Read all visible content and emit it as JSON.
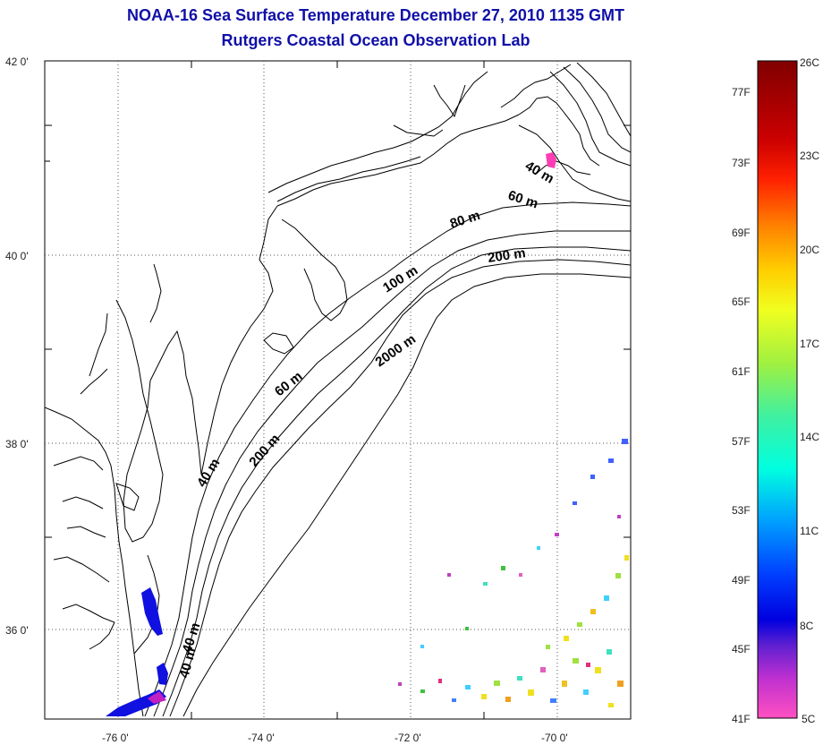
{
  "title": "NOAA-16 Sea Surface Temperature December 27, 2010 1135 GMT",
  "subtitle": "Rutgers Coastal Ocean Observation Lab",
  "map": {
    "lon_range": [
      -77,
      -69
    ],
    "lat_range": [
      35,
      42
    ],
    "lon_ticks": [
      "-76 0'",
      "-74 0'",
      "-72 0'",
      "-70 0'"
    ],
    "lat_ticks": [
      "42 0'",
      "40 0'",
      "38 0'",
      "36 0'"
    ],
    "contour_labels": [
      "40 m",
      "60 m",
      "80 m",
      "200 m",
      "100 m",
      "2000 m",
      "60 m",
      "40 m",
      "200 m",
      "40 m",
      "40 m"
    ]
  },
  "colorbar": {
    "celsius_labels": [
      "26C",
      "23C",
      "20C",
      "17C",
      "14C",
      "11C",
      "8C",
      "5C"
    ],
    "fahrenheit_labels": [
      "77F",
      "73F",
      "69F",
      "65F",
      "61F",
      "57F",
      "53F",
      "49F",
      "45F",
      "41F"
    ]
  },
  "colors": {
    "title": "#1010a8",
    "cold_patch": "#1010e0",
    "warm_patch": "#ff3cb4"
  }
}
